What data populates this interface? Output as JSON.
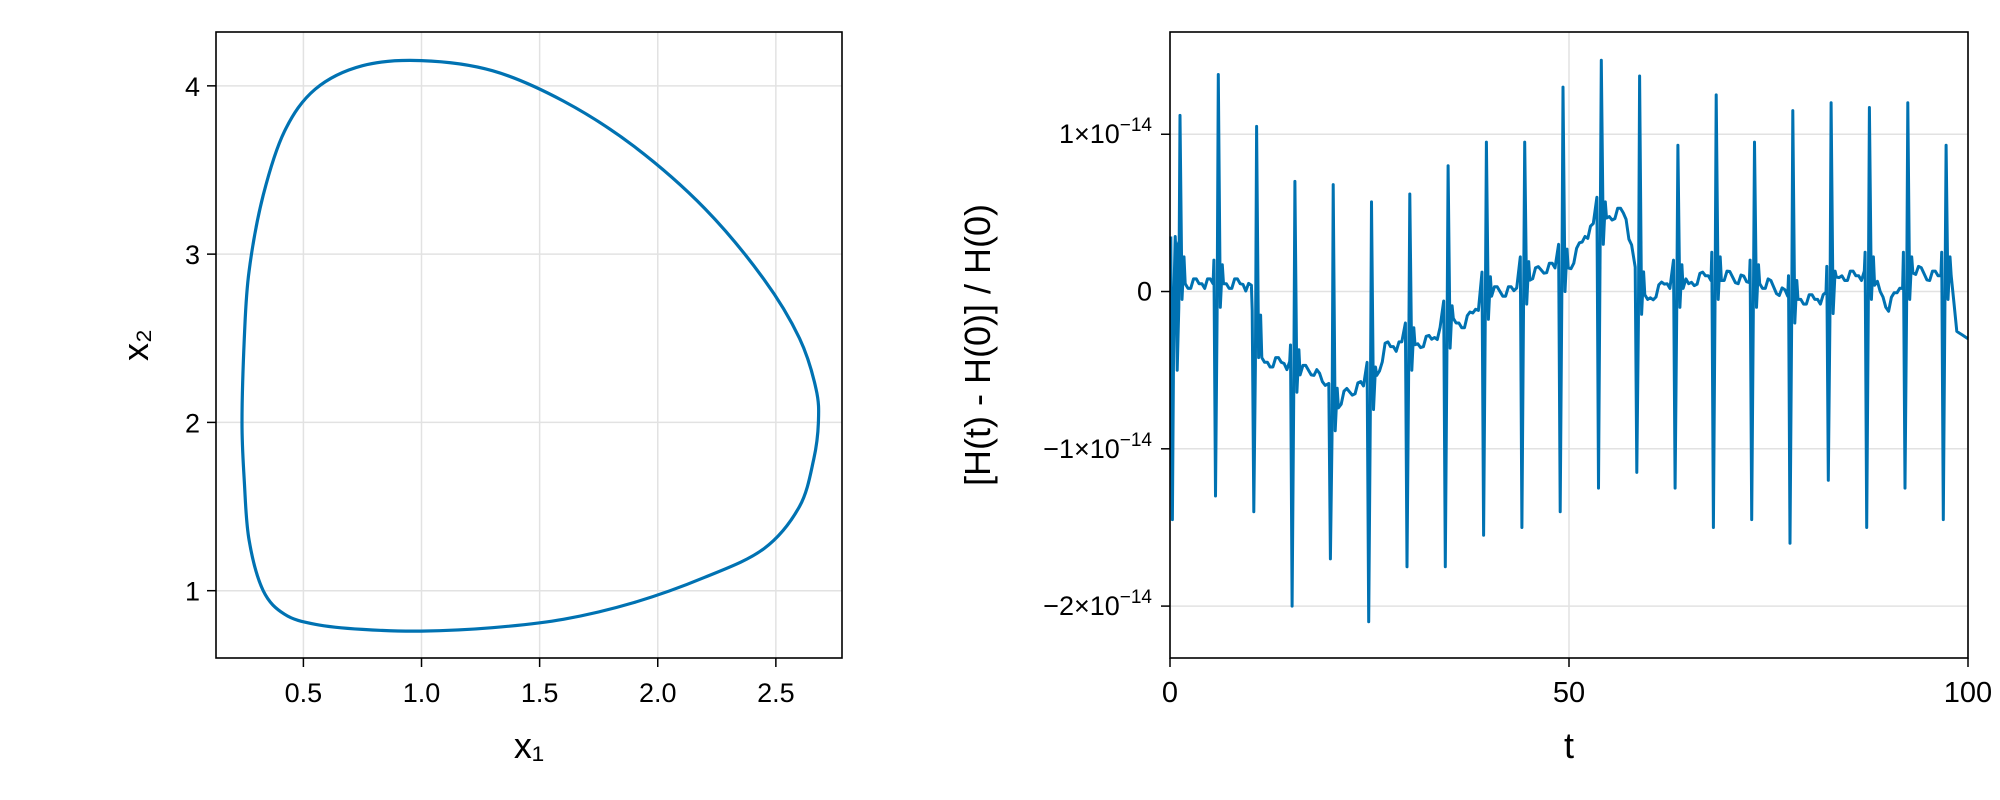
{
  "chart_data": [
    {
      "type": "line",
      "title": "",
      "xlabel": "x₁",
      "ylabel": "x₂",
      "xlim": [
        0.13,
        2.78
      ],
      "ylim": [
        0.6,
        4.32
      ],
      "xticks": [
        0.5,
        1.0,
        1.5,
        2.0,
        2.5
      ],
      "xtick_labels": [
        "0.5",
        "1.0",
        "1.5",
        "2.0",
        "2.5"
      ],
      "yticks": [
        1,
        2,
        3,
        4
      ],
      "ytick_labels": [
        "1",
        "2",
        "3",
        "4"
      ],
      "grid": true,
      "line_color": "#0072b2",
      "series": [
        {
          "x": [
            1.0,
            1.3,
            1.6,
            1.9,
            2.2,
            2.45,
            2.6,
            2.67,
            2.68,
            2.66,
            2.6,
            2.45,
            2.2,
            1.9,
            1.6,
            1.3,
            1.0,
            0.75,
            0.55,
            0.42,
            0.33,
            0.27,
            0.25,
            0.24,
            0.25,
            0.27,
            0.33,
            0.42,
            0.55,
            0.75,
            1.0
          ],
          "y": [
            4.15,
            4.09,
            3.91,
            3.64,
            3.27,
            2.85,
            2.5,
            2.2,
            2.0,
            1.78,
            1.5,
            1.25,
            1.08,
            0.93,
            0.83,
            0.78,
            0.76,
            0.77,
            0.8,
            0.86,
            1.0,
            1.3,
            1.65,
            2.0,
            2.5,
            2.9,
            3.35,
            3.73,
            3.98,
            4.12,
            4.15
          ]
        }
      ]
    },
    {
      "type": "line",
      "title": "",
      "xlabel": "t",
      "ylabel": "[H(t) - H(0)] / H(0)",
      "xlim": [
        0,
        100
      ],
      "ylim": [
        -2.33e-14,
        1.65e-14
      ],
      "xticks": [
        0,
        50,
        100
      ],
      "xtick_labels": [
        "0",
        "50",
        "100"
      ],
      "yticks": [
        1e-14,
        0,
        -1e-14,
        -2e-14
      ],
      "ytick_labels": [
        {
          "mantissa": "1×10",
          "exp": "−14"
        },
        {
          "mantissa": "0",
          "exp": ""
        },
        {
          "mantissa": "−1×10",
          "exp": "−14"
        },
        {
          "mantissa": "−2×10",
          "exp": "−14"
        }
      ],
      "grid": true,
      "line_color": "#0072b2",
      "series": [
        {
          "baseline": {
            "t": [
              0,
              1.5,
              3,
              5,
              7,
              9,
              10.5,
              11,
              12,
              14,
              16,
              18,
              19.5,
              20.5,
              22,
              24,
              25.5,
              27,
              30,
              33,
              35,
              37,
              40,
              43,
              45,
              47,
              50,
              52,
              54,
              56,
              57,
              59,
              60,
              62,
              65,
              67,
              70,
              73,
              75,
              78,
              80,
              82,
              84,
              86,
              88,
              90,
              93,
              95,
              98,
              98.5,
              100
            ],
            "v": [
              3e-15,
              5e-16,
              5e-16,
              5e-16,
              5e-16,
              5e-16,
              0.0,
              -4.5e-15,
              -4.5e-15,
              -4.5e-15,
              -5e-15,
              -5e-15,
              -6e-15,
              -7.5e-15,
              -6.5e-15,
              -6e-15,
              -6e-15,
              -3.5e-15,
              -3.5e-15,
              -3e-15,
              -2e-15,
              -2e-15,
              0.0,
              0.0,
              1e-15,
              1.5e-15,
              1.5e-15,
              3.5e-15,
              4.5e-15,
              5e-15,
              5e-15,
              -5e-16,
              -5e-16,
              5e-16,
              5e-16,
              1e-15,
              1e-15,
              5e-16,
              5e-16,
              -5e-16,
              -5e-16,
              -5e-16,
              1e-15,
              1e-15,
              1e-15,
              -1e-15,
              1.5e-15,
              1e-15,
              1e-15,
              -2.5e-15,
              -3e-15
            ]
          },
          "spikes": [
            {
              "t": 0.6,
              "min": -1.45e-14,
              "max": 3.5e-15
            },
            {
              "t": 1.2,
              "min": -5e-15,
              "max": 1.12e-14
            },
            {
              "t": 6.0,
              "min": -1.3e-14,
              "max": 1.38e-14
            },
            {
              "t": 10.8,
              "min": -1.4e-14,
              "max": 1.05e-14
            },
            {
              "t": 15.6,
              "min": -2e-14,
              "max": 7e-15
            },
            {
              "t": 20.4,
              "min": -1.7e-14,
              "max": 6.8e-15
            },
            {
              "t": 25.2,
              "min": -2.1e-14,
              "max": 5.7e-15
            },
            {
              "t": 30.0,
              "min": -1.75e-14,
              "max": 6.2e-15
            },
            {
              "t": 34.8,
              "min": -1.75e-14,
              "max": 8e-15
            },
            {
              "t": 39.6,
              "min": -1.55e-14,
              "max": 9.5e-15
            },
            {
              "t": 44.4,
              "min": -1.5e-14,
              "max": 9.5e-15
            },
            {
              "t": 49.2,
              "min": -1.4e-14,
              "max": 1.3e-14
            },
            {
              "t": 54.0,
              "min": -1.25e-14,
              "max": 1.47e-14
            },
            {
              "t": 58.8,
              "min": -1.15e-14,
              "max": 1.37e-14
            },
            {
              "t": 63.6,
              "min": -1.25e-14,
              "max": 9.3e-15
            },
            {
              "t": 68.4,
              "min": -1.5e-14,
              "max": 1.25e-14
            },
            {
              "t": 73.2,
              "min": -1.45e-14,
              "max": 9.5e-15
            },
            {
              "t": 78.0,
              "min": -1.6e-14,
              "max": 1.15e-14
            },
            {
              "t": 82.8,
              "min": -1.2e-14,
              "max": 1.2e-14
            },
            {
              "t": 87.6,
              "min": -1.5e-14,
              "max": 1.17e-14
            },
            {
              "t": 92.4,
              "min": -1.25e-14,
              "max": 1.2e-14
            },
            {
              "t": 97.2,
              "min": -1.45e-14,
              "max": 9.3e-15
            }
          ]
        }
      ]
    }
  ]
}
